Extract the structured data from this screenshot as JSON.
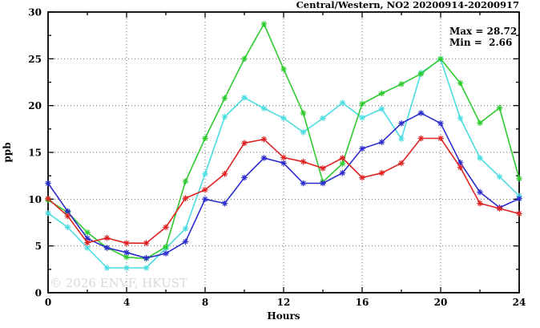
{
  "title": "Central/Western, NO2 20200914-20200917",
  "annotations": {
    "max_label": "Max = 28.72",
    "min_label": "Min =  2.66"
  },
  "watermark": "© 2026 ENVF, HKUST",
  "chart_data": {
    "type": "line",
    "title": "Central/Western, NO2 20200914-20200917",
    "xlabel": "Hours",
    "ylabel": "ppb",
    "xlim": [
      0,
      24
    ],
    "ylim": [
      0,
      30
    ],
    "x_major_ticks": [
      0,
      4,
      8,
      12,
      16,
      20,
      24
    ],
    "x_minor_ticks": [
      2,
      6,
      10,
      14,
      18,
      22
    ],
    "y_major_ticks": [
      0,
      5,
      10,
      15,
      20,
      25,
      30
    ],
    "y_minor_ticks": [
      2.5,
      7.5,
      12.5,
      17.5,
      22.5,
      27.5
    ],
    "grid": "dotted-at-major-ticks",
    "legend_position": "none",
    "max_value": 28.72,
    "min_value": 2.66,
    "x": [
      0,
      1,
      2,
      3,
      4,
      5,
      6,
      7,
      8,
      9,
      10,
      11,
      12,
      13,
      14,
      15,
      16,
      17,
      18,
      19,
      20,
      21,
      22,
      23,
      24
    ],
    "series": [
      {
        "name": "cyan-line",
        "color": "#4adde2",
        "values": [
          8.5,
          7.0,
          4.8,
          2.66,
          2.66,
          2.66,
          4.75,
          6.85,
          12.7,
          18.8,
          20.85,
          19.7,
          18.65,
          17.15,
          18.65,
          20.3,
          18.7,
          19.65,
          16.45,
          23.5,
          24.95,
          18.65,
          14.4,
          12.4,
          10.35
        ]
      },
      {
        "name": "green-line",
        "color": "#2ecb2e",
        "values": [
          9.9,
          8.6,
          6.45,
          4.8,
          3.8,
          3.65,
          4.9,
          11.9,
          16.5,
          20.8,
          25.0,
          28.72,
          23.9,
          19.2,
          11.85,
          13.8,
          20.2,
          21.3,
          22.3,
          23.4,
          25.0,
          22.4,
          18.15,
          19.75,
          12.2
        ]
      },
      {
        "name": "blue-line",
        "color": "#2a2ccd",
        "values": [
          11.7,
          8.7,
          5.8,
          4.8,
          4.3,
          3.7,
          4.2,
          5.45,
          10.0,
          9.55,
          12.3,
          14.4,
          13.85,
          11.7,
          11.7,
          12.8,
          15.4,
          16.1,
          18.1,
          19.2,
          18.1,
          13.9,
          10.75,
          9.1,
          10.05
        ]
      },
      {
        "name": "red-line",
        "color": "#e12222",
        "values": [
          10.05,
          8.2,
          5.35,
          5.85,
          5.3,
          5.3,
          7.0,
          10.1,
          11.0,
          12.7,
          16.0,
          16.4,
          14.45,
          14.0,
          13.3,
          14.4,
          12.3,
          12.8,
          13.85,
          16.5,
          16.5,
          13.4,
          9.55,
          9.0,
          8.45
        ]
      }
    ]
  }
}
